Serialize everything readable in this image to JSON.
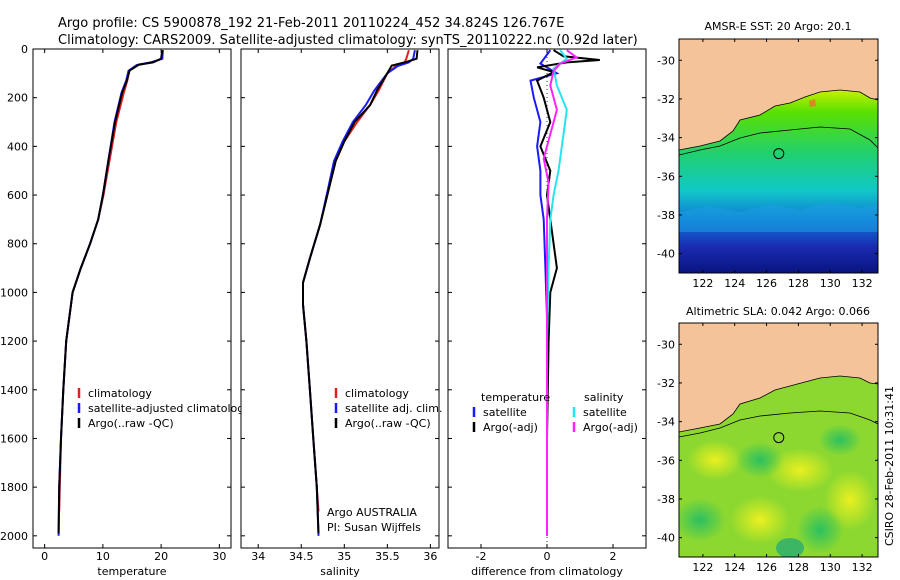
{
  "header": {
    "line1": "Argo profile: CS 5900878_192 21-Feb-2011 20110224_452 34.824S 126.767E",
    "line2": "Climatology: CARS2009. Satellite-adjusted climatology: synTS_20110222.nc (0.92d later)"
  },
  "side_label": "CSIRO 28-Feb-2011 10:31:41",
  "colors": {
    "climatology": "#e02020",
    "satellite": "#1a1aff",
    "argo": "#000000",
    "salinity_satellite": "#22e6f0",
    "salinity_argo": "#ff22ff",
    "land": "#f5c39a"
  },
  "chart_data": [
    {
      "type": "line",
      "panel": "temperature",
      "xlabel": "temperature",
      "ylabel": "",
      "xlim": [
        -2,
        32
      ],
      "ylim": [
        2050,
        0
      ],
      "x_ticks": [
        0,
        10,
        20,
        30
      ],
      "y_ticks": [
        0,
        200,
        400,
        600,
        800,
        1000,
        1200,
        1400,
        1600,
        1800,
        2000
      ],
      "legend": [
        "climatology",
        "satellite-adjusted climatolog",
        "Argo(..raw -QC)"
      ],
      "legend_position": "bottom-right",
      "series": [
        {
          "name": "climatology",
          "color": "#e02020",
          "points": [
            [
              20.3,
              5
            ],
            [
              20.1,
              40
            ],
            [
              18.5,
              55
            ],
            [
              16,
              65
            ],
            [
              14.5,
              90
            ],
            [
              14.2,
              130
            ],
            [
              13.6,
              180
            ],
            [
              12.3,
              300
            ],
            [
              11.2,
              450
            ],
            [
              10.1,
              600
            ],
            [
              9.2,
              700
            ],
            [
              7.8,
              800
            ],
            [
              6.2,
              900
            ],
            [
              4.8,
              1000
            ],
            [
              3.7,
              1200
            ],
            [
              3.2,
              1400
            ],
            [
              2.8,
              1600
            ],
            [
              2.6,
              1800
            ],
            [
              2.5,
              1900
            ]
          ]
        },
        {
          "name": "satellite-adjusted climatolog",
          "color": "#1a1aff",
          "points": [
            [
              20.3,
              5
            ],
            [
              20.2,
              40
            ],
            [
              18.2,
              55
            ],
            [
              15.8,
              66
            ],
            [
              14.4,
              90
            ],
            [
              14.0,
              130
            ],
            [
              13.2,
              180
            ],
            [
              12.0,
              300
            ],
            [
              11.0,
              450
            ],
            [
              10.0,
              600
            ],
            [
              9.2,
              700
            ],
            [
              7.8,
              800
            ],
            [
              6.2,
              900
            ],
            [
              4.8,
              1000
            ],
            [
              3.7,
              1200
            ],
            [
              3.2,
              1400
            ],
            [
              2.8,
              1600
            ],
            [
              2.5,
              1800
            ],
            [
              2.4,
              2000
            ]
          ]
        },
        {
          "name": "Argo(..raw -QC)",
          "color": "#000000",
          "points": [
            [
              20.2,
              5
            ],
            [
              20.0,
              40
            ],
            [
              18.6,
              55
            ],
            [
              16.2,
              64
            ],
            [
              14.6,
              88
            ],
            [
              14.1,
              130
            ],
            [
              13.3,
              180
            ],
            [
              12.1,
              300
            ],
            [
              11.0,
              450
            ],
            [
              10.0,
              600
            ],
            [
              9.2,
              700
            ],
            [
              7.8,
              800
            ],
            [
              6.2,
              900
            ],
            [
              4.8,
              1000
            ],
            [
              3.7,
              1200
            ],
            [
              3.2,
              1400
            ],
            [
              2.8,
              1600
            ],
            [
              2.5,
              1800
            ],
            [
              2.4,
              1990
            ]
          ]
        }
      ]
    },
    {
      "type": "line",
      "panel": "salinity",
      "xlabel": "salinity",
      "ylabel": "",
      "xlim": [
        33.8,
        36.1
      ],
      "ylim": [
        2050,
        0
      ],
      "x_ticks": [
        34,
        34.5,
        35,
        35.5,
        36
      ],
      "x_tick_labels": [
        "34",
        "34.5",
        "35",
        "35.5",
        "36"
      ],
      "legend": [
        "climatology",
        "satellite adj. clim.",
        "Argo(..raw -QC)"
      ],
      "legend_position": "bottom-right",
      "annotation": [
        "Argo AUSTRALIA",
        "PI: Susan Wijffels"
      ],
      "series": [
        {
          "name": "climatology",
          "color": "#e02020",
          "points": [
            [
              35.75,
              5
            ],
            [
              35.72,
              40
            ],
            [
              35.7,
              55
            ],
            [
              35.6,
              70
            ],
            [
              35.5,
              100
            ],
            [
              35.4,
              170
            ],
            [
              35.3,
              230
            ],
            [
              35.15,
              300
            ],
            [
              35.0,
              380
            ],
            [
              34.9,
              460
            ],
            [
              34.83,
              560
            ],
            [
              34.72,
              720
            ],
            [
              34.6,
              860
            ],
            [
              34.52,
              960
            ],
            [
              34.52,
              1050
            ],
            [
              34.56,
              1200
            ],
            [
              34.6,
              1400
            ],
            [
              34.64,
              1600
            ],
            [
              34.68,
              1800
            ],
            [
              34.7,
              1900
            ]
          ]
        },
        {
          "name": "satellite adj. clim.",
          "color": "#1a1aff",
          "points": [
            [
              35.82,
              5
            ],
            [
              35.8,
              40
            ],
            [
              35.75,
              55
            ],
            [
              35.62,
              70
            ],
            [
              35.5,
              100
            ],
            [
              35.35,
              170
            ],
            [
              35.25,
              230
            ],
            [
              35.1,
              300
            ],
            [
              34.98,
              380
            ],
            [
              34.88,
              460
            ],
            [
              34.82,
              560
            ],
            [
              34.72,
              720
            ],
            [
              34.6,
              860
            ],
            [
              34.52,
              960
            ],
            [
              34.52,
              1050
            ],
            [
              34.56,
              1200
            ],
            [
              34.6,
              1400
            ],
            [
              34.64,
              1600
            ],
            [
              34.68,
              1800
            ],
            [
              34.7,
              2000
            ]
          ]
        },
        {
          "name": "Argo(..raw -QC)",
          "color": "#000000",
          "points": [
            [
              35.85,
              5
            ],
            [
              35.84,
              40
            ],
            [
              35.7,
              55
            ],
            [
              35.55,
              68
            ],
            [
              35.5,
              100
            ],
            [
              35.38,
              170
            ],
            [
              35.3,
              230
            ],
            [
              35.12,
              300
            ],
            [
              35.0,
              380
            ],
            [
              34.9,
              460
            ],
            [
              34.83,
              560
            ],
            [
              34.72,
              720
            ],
            [
              34.6,
              860
            ],
            [
              34.52,
              960
            ],
            [
              34.52,
              1050
            ],
            [
              34.56,
              1200
            ],
            [
              34.6,
              1400
            ],
            [
              34.64,
              1600
            ],
            [
              34.68,
              1800
            ],
            [
              34.7,
              1990
            ]
          ]
        }
      ]
    },
    {
      "type": "line",
      "panel": "difference",
      "xlabel": "difference from climatology",
      "ylabel": "",
      "xlim": [
        -3,
        3
      ],
      "ylim": [
        2050,
        0
      ],
      "x_ticks": [
        -2,
        0,
        2
      ],
      "legend_left_title": "temperature",
      "legend_left": [
        "satellite",
        "Argo(-adj)"
      ],
      "legend_right_title": "salinity",
      "legend_right": [
        "satellite",
        "Argo(-adj)"
      ],
      "series": [
        {
          "name": "temperature satellite",
          "color": "#1a1aff",
          "points": [
            [
              0.1,
              5
            ],
            [
              -0.2,
              60
            ],
            [
              0.3,
              100
            ],
            [
              -0.5,
              130
            ],
            [
              -0.4,
              200
            ],
            [
              -0.2,
              300
            ],
            [
              -0.3,
              400
            ],
            [
              -0.2,
              500
            ],
            [
              -0.2,
              600
            ],
            [
              -0.1,
              700
            ],
            [
              -0.05,
              900
            ],
            [
              0,
              1100
            ],
            [
              0,
              1400
            ],
            [
              0,
              1800
            ],
            [
              0,
              2000
            ]
          ]
        },
        {
          "name": "temperature Argo(-adj)",
          "color": "#000000",
          "points": [
            [
              0.2,
              5
            ],
            [
              0.5,
              30
            ],
            [
              1.6,
              45
            ],
            [
              0.6,
              55
            ],
            [
              -0.3,
              75
            ],
            [
              0.2,
              95
            ],
            [
              -0.3,
              130
            ],
            [
              -0.1,
              200
            ],
            [
              0.1,
              300
            ],
            [
              -0.2,
              400
            ],
            [
              0.1,
              500
            ],
            [
              0,
              600
            ],
            [
              0.1,
              700
            ],
            [
              0.3,
              900
            ],
            [
              0.1,
              1000
            ],
            [
              0.05,
              1200
            ],
            [
              0,
              1600
            ],
            [
              0,
              2000
            ]
          ]
        },
        {
          "name": "salinity satellite",
          "color": "#22e6f0",
          "points": [
            [
              0.4,
              5
            ],
            [
              0.6,
              40
            ],
            [
              0.2,
              80
            ],
            [
              0.3,
              150
            ],
            [
              0.6,
              250
            ],
            [
              0.5,
              350
            ],
            [
              0.35,
              500
            ],
            [
              0.2,
              600
            ],
            [
              0.1,
              700
            ],
            [
              0.05,
              900
            ],
            [
              0,
              1200
            ],
            [
              0,
              1600
            ],
            [
              0,
              2000
            ]
          ]
        },
        {
          "name": "salinity Argo(-adj)",
          "color": "#ff22ff",
          "points": [
            [
              0.6,
              5
            ],
            [
              0.9,
              35
            ],
            [
              0.4,
              60
            ],
            [
              0.2,
              90
            ],
            [
              0.1,
              150
            ],
            [
              0.3,
              250
            ],
            [
              0.1,
              350
            ],
            [
              -0.1,
              450
            ],
            [
              0.05,
              550
            ],
            [
              0,
              700
            ],
            [
              0,
              1000
            ],
            [
              0,
              1400
            ],
            [
              0,
              2000
            ]
          ]
        }
      ]
    },
    {
      "type": "heatmap",
      "panel": "sst-map",
      "title": "AMSR-E SST: 20 Argo: 20.1",
      "xlim": [
        120.5,
        133
      ],
      "ylim": [
        -41,
        -28.9
      ],
      "x_ticks": [
        122,
        124,
        126,
        128,
        130,
        132
      ],
      "y_ticks": [
        -30,
        -32,
        -34,
        -36,
        -38,
        -40
      ],
      "marker": [
        126.767,
        -34.824
      ]
    },
    {
      "type": "heatmap",
      "panel": "sla-map",
      "title": "Altimetric SLA: 0.042 Argo: 0.066",
      "xlim": [
        120.5,
        133
      ],
      "ylim": [
        -41,
        -28.9
      ],
      "x_ticks": [
        122,
        124,
        126,
        128,
        130,
        132
      ],
      "y_ticks": [
        -30,
        -32,
        -34,
        -36,
        -38,
        -40
      ],
      "marker": [
        126.767,
        -34.824
      ]
    }
  ]
}
